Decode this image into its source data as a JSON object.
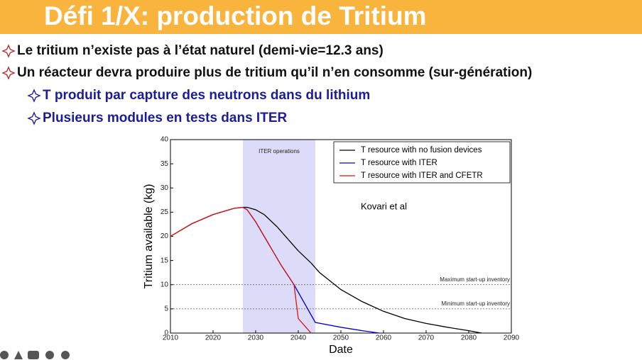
{
  "header": {
    "title": "Défi 1/X: production de Tritium"
  },
  "bullets": [
    {
      "level": 1,
      "text": "Le tritium n’existe pas à l’état naturel (demi-vie=12.3 ans)"
    },
    {
      "level": 1,
      "text": "Un réacteur devra produire plus de tritium qu’il n’en consomme (sur-génération)"
    },
    {
      "level": 2,
      "text": "T produit par capture des neutrons dans du lithium"
    },
    {
      "level": 2,
      "text": "Plusieurs modules en tests dans ITER"
    }
  ],
  "chart_data": {
    "type": "line",
    "xlabel": "Date",
    "ylabel": "Tritium available (kg)",
    "xlim": [
      2010,
      2090
    ],
    "xticks": [
      2010,
      2020,
      2030,
      2040,
      2050,
      2060,
      2070,
      2080,
      2090
    ],
    "ylim": [
      0,
      40
    ],
    "yticks": [
      0,
      5,
      10,
      15,
      20,
      25,
      30,
      35,
      40
    ],
    "legend": "upper right",
    "shaded_span": {
      "label": "ITER operations",
      "x": [
        2027,
        2044
      ],
      "color": "#dcdcf8"
    },
    "hlines": [
      {
        "y": 10,
        "label": "Maximum start-up inventory"
      },
      {
        "y": 5,
        "label": "Minimum start-up inventory"
      }
    ],
    "annotation": "Kovari et al",
    "series": [
      {
        "name": "T resource with no fusion devices",
        "color": "#000000",
        "x": [
          2010,
          2015,
          2020,
          2025,
          2027,
          2028,
          2030,
          2032,
          2035,
          2038,
          2040,
          2043,
          2045,
          2050,
          2055,
          2060,
          2065,
          2070,
          2075,
          2080,
          2083
        ],
        "values": [
          20,
          22.6,
          24.5,
          25.8,
          26,
          26,
          25.5,
          24.5,
          22,
          19,
          17,
          14.5,
          12.5,
          9,
          6.5,
          4.5,
          3,
          2,
          1.2,
          0.5,
          0
        ]
      },
      {
        "name": "T resource with ITER",
        "color": "#0000dd",
        "x": [
          2027,
          2028,
          2030,
          2033,
          2036,
          2039,
          2044,
          2050,
          2055,
          2059
        ],
        "values": [
          26,
          25.5,
          23,
          18.5,
          14,
          10,
          2.2,
          1.2,
          0.5,
          0
        ]
      },
      {
        "name": "T resource with ITER and CFETR",
        "color": "#dd1111",
        "x": [
          2010,
          2015,
          2020,
          2025,
          2027,
          2028,
          2030,
          2033,
          2036,
          2039,
          2040,
          2042,
          2043
        ],
        "values": [
          20,
          22.6,
          24.5,
          25.8,
          26,
          25.5,
          23,
          18.5,
          14,
          10,
          3,
          1,
          0
        ]
      }
    ]
  }
}
